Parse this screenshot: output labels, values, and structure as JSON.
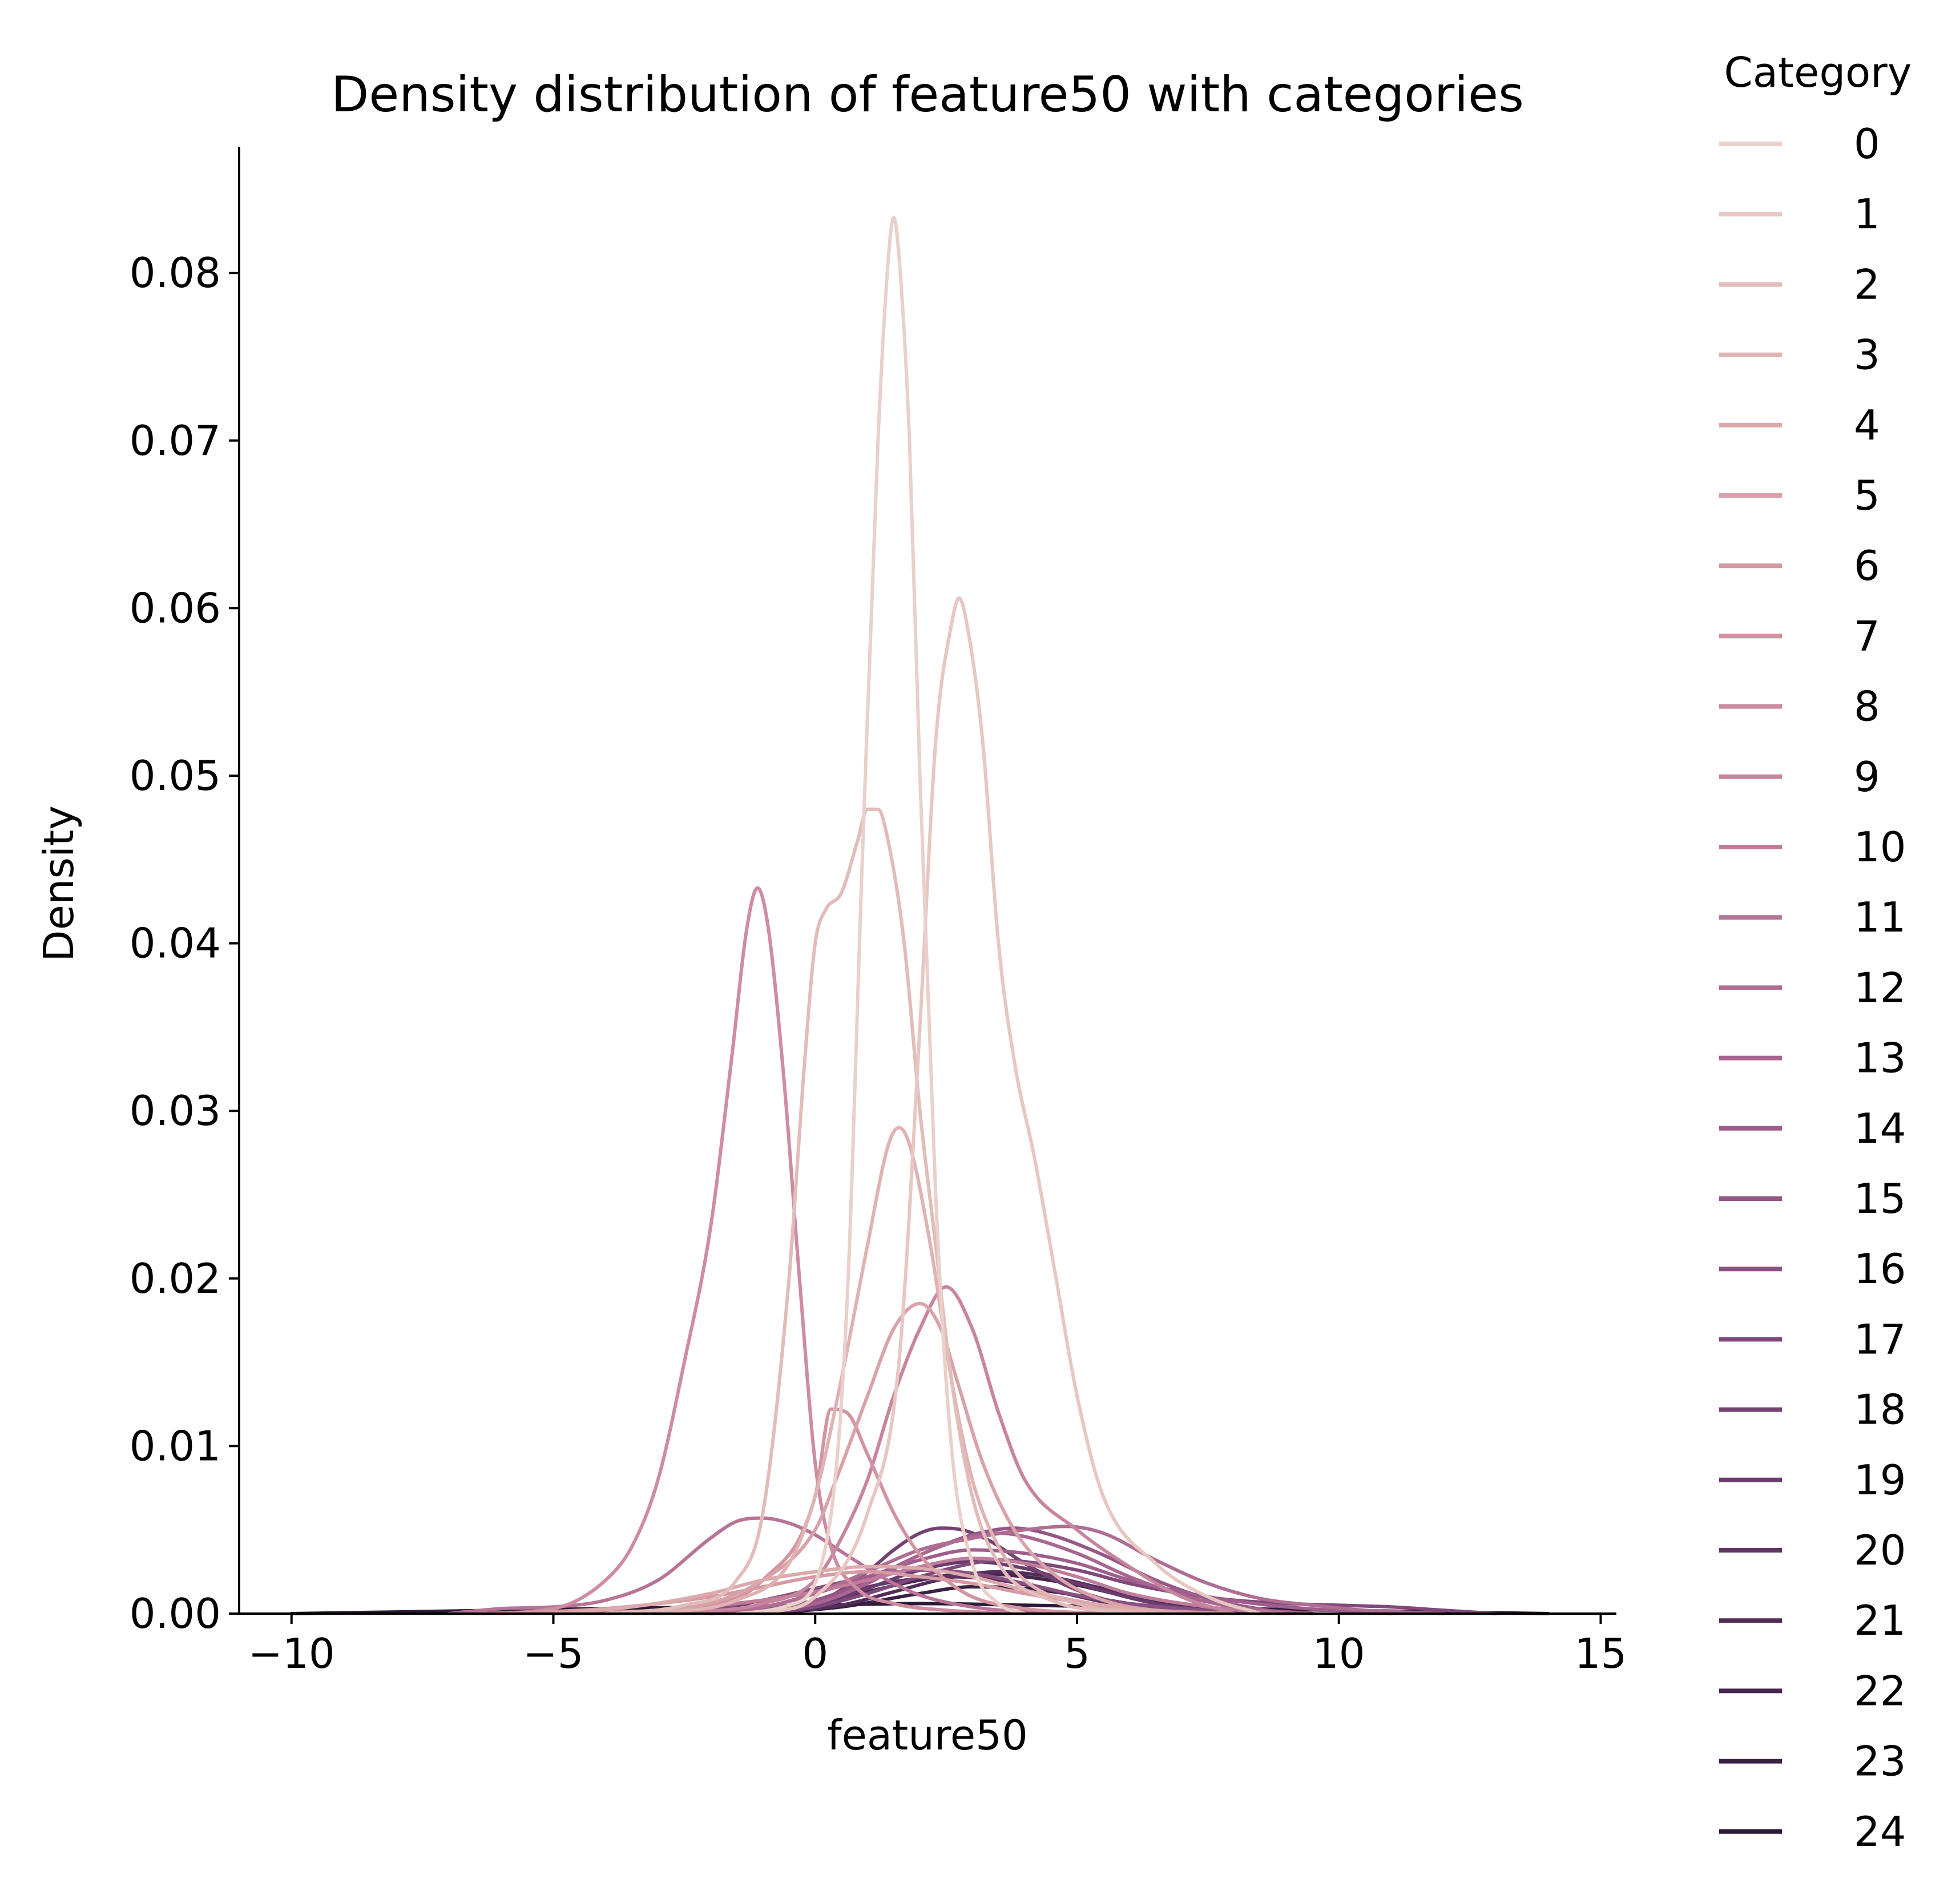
{
  "chart_data": {
    "type": "line",
    "title": "Density distribution of feature50 with categories",
    "xlabel": "feature50",
    "ylabel": "Density",
    "xlim": [
      -11.0,
      15.3
    ],
    "ylim": [
      0.0,
      0.0875
    ],
    "x_ticks": [
      -10,
      -5,
      0,
      5,
      10,
      15
    ],
    "x_tick_labels": [
      "−10",
      "−5",
      "0",
      "5",
      "10",
      "15"
    ],
    "y_ticks": [
      0.0,
      0.01,
      0.02,
      0.03,
      0.04,
      0.05,
      0.06,
      0.07,
      0.08
    ],
    "y_tick_labels": [
      "0.00",
      "0.01",
      "0.02",
      "0.03",
      "0.04",
      "0.05",
      "0.06",
      "0.07",
      "0.08"
    ],
    "grid": false,
    "legend": {
      "title": "Category",
      "placement": "outside-right"
    },
    "series": [
      {
        "name": "0",
        "color": "#ead0ca",
        "x": [
          -1.5,
          -0.5,
          0.2,
          0.6,
          0.9,
          1.2,
          1.4,
          1.5,
          1.6,
          1.8,
          2.0,
          2.3,
          2.6,
          3.0,
          3.5,
          4.0
        ],
        "y": [
          0.0,
          0.0005,
          0.004,
          0.018,
          0.045,
          0.07,
          0.081,
          0.0833,
          0.081,
          0.07,
          0.05,
          0.025,
          0.01,
          0.003,
          0.0006,
          0.0
        ]
      },
      {
        "name": "1",
        "color": "#e7c7c1",
        "x": [
          -1.0,
          0.0,
          1.0,
          1.6,
          2.0,
          2.3,
          2.6,
          2.75,
          2.9,
          3.2,
          3.5,
          3.8,
          4.2,
          4.6,
          5.0,
          5.5,
          6.5,
          7.5,
          8.5
        ],
        "y": [
          0.0,
          0.001,
          0.006,
          0.015,
          0.035,
          0.052,
          0.059,
          0.0606,
          0.059,
          0.052,
          0.04,
          0.033,
          0.027,
          0.02,
          0.013,
          0.007,
          0.003,
          0.001,
          0.0
        ]
      },
      {
        "name": "2",
        "color": "#e2bcb9",
        "x": [
          -4.0,
          -2.5,
          -1.5,
          -1.0,
          -0.5,
          -0.2,
          0.0,
          0.2,
          0.5,
          0.8,
          1.0,
          1.2,
          1.4,
          1.7,
          2.0,
          2.3,
          2.6,
          3.0,
          3.5,
          4.5,
          6.0
        ],
        "y": [
          0.0,
          0.0005,
          0.002,
          0.006,
          0.02,
          0.033,
          0.04,
          0.042,
          0.043,
          0.046,
          0.048,
          0.048,
          0.046,
          0.04,
          0.03,
          0.022,
          0.014,
          0.007,
          0.003,
          0.0008,
          0.0
        ]
      },
      {
        "name": "3",
        "color": "#dfb3b2",
        "x": [
          -3.0,
          -1.5,
          -0.5,
          0.0,
          0.5,
          1.0,
          1.4,
          1.6,
          1.8,
          2.2,
          2.6,
          3.0,
          3.5,
          4.0,
          5.0,
          6.5
        ],
        "y": [
          0.0,
          0.0008,
          0.003,
          0.007,
          0.014,
          0.022,
          0.028,
          0.029,
          0.028,
          0.022,
          0.014,
          0.008,
          0.004,
          0.002,
          0.0006,
          0.0
        ]
      },
      {
        "name": "4",
        "color": "#dcaaac",
        "x": [
          -5.0,
          -3.5,
          -2.0,
          -1.0,
          0.0,
          1.0,
          2.0,
          3.0,
          4.0,
          5.5,
          7.0
        ],
        "y": [
          0.0,
          0.0004,
          0.0012,
          0.002,
          0.0025,
          0.0028,
          0.0027,
          0.0022,
          0.0014,
          0.0005,
          0.0
        ]
      },
      {
        "name": "5",
        "color": "#d9a2a8",
        "x": [
          -4.0,
          -2.5,
          -1.0,
          0.0,
          0.4,
          1.0,
          1.5,
          2.0,
          2.4,
          2.7,
          3.2,
          3.8,
          4.5,
          5.5,
          7.0
        ],
        "y": [
          0.0,
          0.0003,
          0.002,
          0.005,
          0.008,
          0.013,
          0.017,
          0.0185,
          0.017,
          0.014,
          0.009,
          0.005,
          0.0025,
          0.0008,
          0.0
        ]
      },
      {
        "name": "6",
        "color": "#d69aa4",
        "x": [
          -6.0,
          -4.0,
          -2.0,
          -1.0,
          0.0,
          1.0,
          2.0,
          3.0,
          4.0,
          5.0,
          6.5,
          8.0
        ],
        "y": [
          0.0,
          0.0003,
          0.001,
          0.0016,
          0.0022,
          0.0025,
          0.0022,
          0.0018,
          0.0012,
          0.0007,
          0.0002,
          0.0
        ]
      },
      {
        "name": "7",
        "color": "#d393a1",
        "x": [
          -4.0,
          -2.0,
          -1.0,
          0.0,
          0.3,
          0.6,
          1.0,
          1.5,
          2.0,
          2.5,
          3.0,
          4.0,
          5.5
        ],
        "y": [
          0.0,
          0.0005,
          0.002,
          0.007,
          0.0122,
          0.012,
          0.0095,
          0.006,
          0.0035,
          0.002,
          0.001,
          0.0003,
          0.0
        ]
      },
      {
        "name": "8",
        "color": "#cf8ba0",
        "x": [
          -6.5,
          -5.0,
          -4.0,
          -3.5,
          -3.0,
          -2.5,
          -2.0,
          -1.6,
          -1.3,
          -1.1,
          -0.9,
          -0.6,
          -0.3,
          0.0,
          0.3,
          0.8,
          1.5,
          2.5,
          4.0
        ],
        "y": [
          0.0,
          0.0003,
          0.002,
          0.004,
          0.008,
          0.015,
          0.023,
          0.033,
          0.041,
          0.0433,
          0.041,
          0.032,
          0.02,
          0.009,
          0.004,
          0.0015,
          0.0006,
          0.0002,
          0.0
        ]
      },
      {
        "name": "9",
        "color": "#c9849d",
        "x": [
          -3.0,
          -1.0,
          0.0,
          0.5,
          1.0,
          1.5,
          2.0,
          2.5,
          3.0,
          3.5,
          4.0,
          5.0,
          6.0,
          7.0,
          8.0
        ],
        "y": [
          0.0,
          0.0006,
          0.002,
          0.0045,
          0.008,
          0.013,
          0.017,
          0.0195,
          0.017,
          0.012,
          0.008,
          0.005,
          0.0028,
          0.001,
          0.0
        ]
      },
      {
        "name": "10",
        "color": "#c07c9a",
        "x": [
          -5.0,
          -3.0,
          -1.0,
          0.0,
          1.0,
          2.0,
          3.0,
          4.0,
          5.0,
          6.0,
          7.5,
          9.0
        ],
        "y": [
          0.0,
          0.0002,
          0.0008,
          0.0013,
          0.002,
          0.0028,
          0.0033,
          0.003,
          0.0022,
          0.0012,
          0.0004,
          0.0
        ]
      },
      {
        "name": "11",
        "color": "#b87497",
        "x": [
          -7.0,
          -6.0,
          -5.0,
          -4.0,
          -3.0,
          -2.0,
          -1.5,
          -1.0,
          -0.5,
          0.0,
          0.5,
          1.0,
          1.5,
          2.0,
          3.0,
          4.0,
          5.0
        ],
        "y": [
          0.0,
          0.0003,
          0.0004,
          0.0008,
          0.002,
          0.0045,
          0.0055,
          0.0057,
          0.0054,
          0.0047,
          0.0037,
          0.0027,
          0.0018,
          0.0011,
          0.0004,
          0.0001,
          0.0
        ]
      },
      {
        "name": "12",
        "color": "#b06d93",
        "x": [
          -3.0,
          -1.0,
          0.0,
          1.0,
          2.0,
          3.0,
          4.0,
          4.8,
          5.5,
          6.5,
          7.5,
          8.5,
          9.5,
          10.5,
          12.0
        ],
        "y": [
          0.0,
          0.0004,
          0.0012,
          0.0025,
          0.0038,
          0.0045,
          0.005,
          0.0052,
          0.0048,
          0.0032,
          0.0018,
          0.0009,
          0.0005,
          0.0002,
          0.0
        ]
      },
      {
        "name": "13",
        "color": "#a8658f",
        "x": [
          -2.0,
          0.0,
          1.0,
          2.0,
          3.0,
          3.5,
          4.0,
          5.0,
          6.0,
          7.0,
          8.0,
          9.5
        ],
        "y": [
          0.0,
          0.0006,
          0.0018,
          0.0035,
          0.0046,
          0.0048,
          0.0046,
          0.0036,
          0.0022,
          0.0011,
          0.0004,
          0.0
        ]
      },
      {
        "name": "14",
        "color": "#9f5e8b",
        "x": [
          -3.0,
          -1.0,
          0.0,
          1.0,
          2.0,
          3.0,
          4.0,
          5.0,
          6.0,
          7.5,
          9.0,
          11.0
        ],
        "y": [
          0.0,
          0.0004,
          0.0012,
          0.0022,
          0.0032,
          0.0038,
          0.0036,
          0.003,
          0.002,
          0.001,
          0.0004,
          0.0
        ]
      },
      {
        "name": "15",
        "color": "#955786",
        "x": [
          -2.0,
          0.0,
          1.0,
          2.0,
          3.0,
          3.8,
          4.5,
          5.5,
          6.5,
          7.5,
          9.0
        ],
        "y": [
          0.0,
          0.0008,
          0.002,
          0.0035,
          0.0047,
          0.0051,
          0.0047,
          0.0035,
          0.002,
          0.0009,
          0.0
        ]
      },
      {
        "name": "16",
        "color": "#8b5081",
        "x": [
          -4.0,
          -2.0,
          -1.0,
          0.0,
          1.0,
          2.0,
          3.0,
          4.0,
          5.0,
          6.0,
          7.5,
          9.0
        ],
        "y": [
          0.0,
          0.0003,
          0.0008,
          0.0015,
          0.0022,
          0.0026,
          0.0024,
          0.0018,
          0.0011,
          0.0006,
          0.0002,
          0.0
        ]
      },
      {
        "name": "17",
        "color": "#80497b",
        "x": [
          -1.0,
          0.0,
          1.0,
          2.0,
          3.0,
          3.5,
          4.0,
          5.0,
          6.0,
          7.0,
          8.0,
          9.0,
          10.0,
          11.0,
          12.0,
          13.0
        ],
        "y": [
          0.0,
          0.0004,
          0.0012,
          0.0022,
          0.003,
          0.0032,
          0.0031,
          0.0026,
          0.0018,
          0.0012,
          0.0008,
          0.0006,
          0.0005,
          0.0004,
          0.0002,
          0.0
        ]
      },
      {
        "name": "18",
        "color": "#754274",
        "x": [
          -1.0,
          0.0,
          1.0,
          1.5,
          2.0,
          2.4,
          2.8,
          3.3,
          4.0,
          5.0,
          6.0,
          7.5
        ],
        "y": [
          0.0,
          0.0006,
          0.0025,
          0.0038,
          0.0048,
          0.0051,
          0.005,
          0.0044,
          0.003,
          0.0014,
          0.0005,
          0.0
        ]
      },
      {
        "name": "19",
        "color": "#6a3b6c",
        "x": [
          -2.0,
          0.0,
          1.0,
          2.0,
          3.0,
          4.0,
          5.0,
          6.5,
          8.0
        ],
        "y": [
          0.0,
          0.0005,
          0.0015,
          0.0026,
          0.0031,
          0.0027,
          0.0018,
          0.0006,
          0.0
        ]
      },
      {
        "name": "20",
        "color": "#5e3463",
        "x": [
          -2.0,
          -0.5,
          0.5,
          1.5,
          2.5,
          3.5,
          4.5,
          5.5,
          7.0
        ],
        "y": [
          0.0,
          0.0004,
          0.0012,
          0.0019,
          0.0022,
          0.002,
          0.0014,
          0.0007,
          0.0
        ]
      },
      {
        "name": "21",
        "color": "#522d59",
        "x": [
          -1.0,
          0.5,
          1.5,
          2.5,
          3.5,
          4.5,
          5.5,
          7.0,
          8.5
        ],
        "y": [
          0.0,
          0.0005,
          0.0013,
          0.0021,
          0.0025,
          0.0022,
          0.0015,
          0.0005,
          0.0
        ]
      },
      {
        "name": "22",
        "color": "#46274f",
        "x": [
          -2.0,
          0.0,
          1.0,
          2.0,
          3.0,
          4.0,
          5.0,
          6.0,
          7.0,
          8.5
        ],
        "y": [
          0.0,
          0.0005,
          0.0013,
          0.002,
          0.0024,
          0.0022,
          0.0017,
          0.001,
          0.0005,
          0.0
        ]
      },
      {
        "name": "23",
        "color": "#3a2044",
        "x": [
          -1.0,
          0.5,
          2.0,
          3.0,
          4.0,
          5.0,
          6.0,
          7.5
        ],
        "y": [
          0.0,
          0.0004,
          0.0012,
          0.0016,
          0.0015,
          0.0011,
          0.0006,
          0.0
        ]
      },
      {
        "name": "24",
        "color": "#2d1a36",
        "x": [
          -10.0,
          -8.0,
          -6.0,
          -4.0,
          -2.0,
          0.0,
          2.0,
          4.0,
          6.0,
          8.0,
          10.0,
          12.0,
          14.0
        ],
        "y": [
          0.0,
          0.0001,
          0.0002,
          0.0003,
          0.0004,
          0.0005,
          0.0006,
          0.0005,
          0.0004,
          0.0003,
          0.0002,
          0.0001,
          0.0
        ]
      }
    ]
  }
}
